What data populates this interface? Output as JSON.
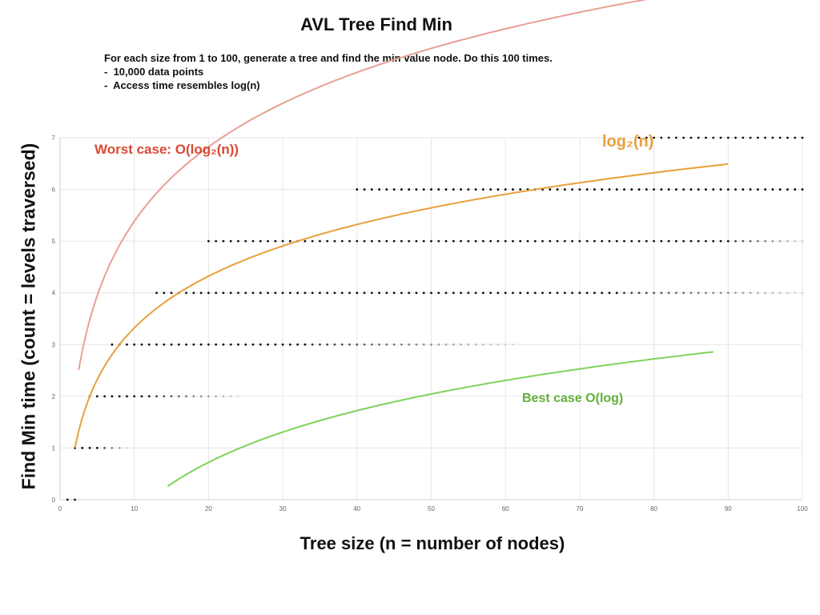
{
  "chart_data": {
    "type": "scatter",
    "title": "AVL Tree Find Min",
    "description": {
      "line": "For each size from 1 to 100, generate a tree and find the min value node. Do this 100 times.",
      "bullets": [
        "10,000 data points",
        "Access time resembles log(n)"
      ]
    },
    "xlabel": "Tree size (n = number of nodes)",
    "ylabel": "Find Min time (count = levels traversed)",
    "xlim": [
      0,
      100
    ],
    "ylim": [
      0,
      7
    ],
    "x_ticks": [
      "0",
      "10",
      "20",
      "30",
      "40",
      "50",
      "60",
      "70",
      "80",
      "90",
      "100"
    ],
    "y_ticks": [
      "0",
      "1",
      "2",
      "3",
      "4",
      "5",
      "6",
      "7"
    ],
    "grid": true,
    "point_bands": [
      {
        "y": 0,
        "x_start": 1,
        "x_end": 2,
        "dense_to": 2
      },
      {
        "y": 1,
        "x_start": 2,
        "x_end": 9,
        "dense_to": 5
      },
      {
        "y": 2,
        "x_start": 4,
        "x_end": 24,
        "dense_to": 12
      },
      {
        "y": 3,
        "x_start": 7,
        "x_end": 61,
        "dense_to": 33
      },
      {
        "y": 4,
        "x_start": 13,
        "x_end": 100,
        "dense_to": 75
      },
      {
        "y": 5,
        "x_start": 20,
        "x_end": 100,
        "dense_to": 90
      },
      {
        "y": 6,
        "x_start": 40,
        "x_end": 100,
        "dense_to": 100
      },
      {
        "y": 7,
        "x_start": 78,
        "x_end": 100,
        "dense_to": 100
      }
    ],
    "curves": [
      {
        "label": "Worst case: O(log₂(n))",
        "color": "#e8a096",
        "label_color": "#d94a33",
        "x_range": [
          2.5,
          90
        ],
        "scale": 1.44,
        "offset": 0.6
      },
      {
        "label": "log₂(n)",
        "color": "#e8a03c",
        "label_color": "#e8a03c",
        "x_range": [
          2,
          90
        ],
        "scale": 1.0,
        "offset": 0
      },
      {
        "label": "Best case O(log)",
        "color": "#7ed35a",
        "label_color": "#62b03a",
        "x_range": [
          14.5,
          88
        ],
        "scale": 1.0,
        "offset": -3.6
      }
    ]
  }
}
